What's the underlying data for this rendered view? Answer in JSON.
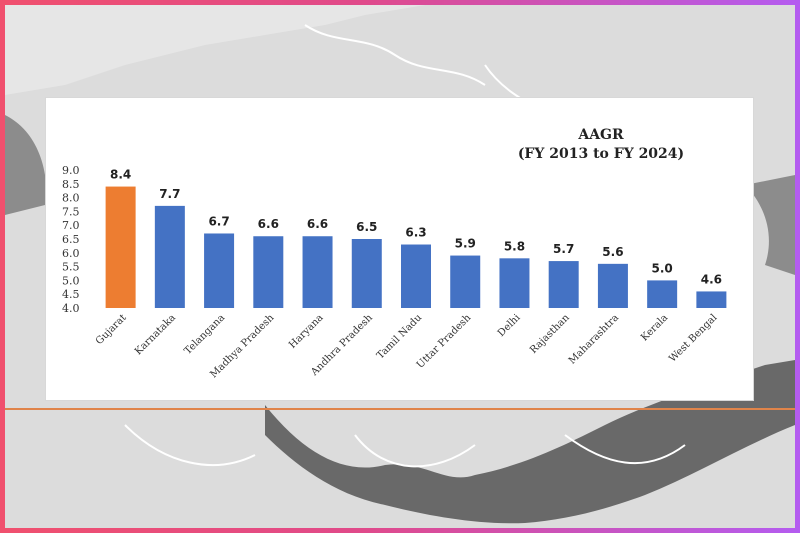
{
  "chart_data": {
    "type": "bar",
    "title": "AAGR",
    "subtitle": "(FY 2013 to FY 2024)",
    "categories": [
      "Gujarat",
      "Karnataka",
      "Telangana",
      "Madhya Pradesh",
      "Haryana",
      "Andhra Pradesh",
      "Tamil Nadu",
      "Uttar Pradesh",
      "Delhi",
      "Rajasthan",
      "Maharashtra",
      "Kerala",
      "West Bengal"
    ],
    "values": [
      8.4,
      7.7,
      6.7,
      6.6,
      6.6,
      6.5,
      6.3,
      5.9,
      5.8,
      5.7,
      5.6,
      5.0,
      4.6
    ],
    "value_labels": [
      "8.4",
      "7.7",
      "6.7",
      "6.6",
      "6.6",
      "6.5",
      "6.3",
      "5.9",
      "5.8",
      "5.7",
      "5.6",
      "5.0",
      "4.6"
    ],
    "highlight_index": 0,
    "ylim": [
      4.0,
      9.0
    ],
    "yticks": [
      "4.0",
      "4.5",
      "5.0",
      "5.5",
      "6.0",
      "6.5",
      "7.0",
      "7.5",
      "8.0",
      "8.5",
      "9.0"
    ],
    "xlabel": "",
    "ylabel": "",
    "grid": false,
    "colors": {
      "bar": "#4472c4",
      "highlight": "#ed7d31"
    }
  }
}
